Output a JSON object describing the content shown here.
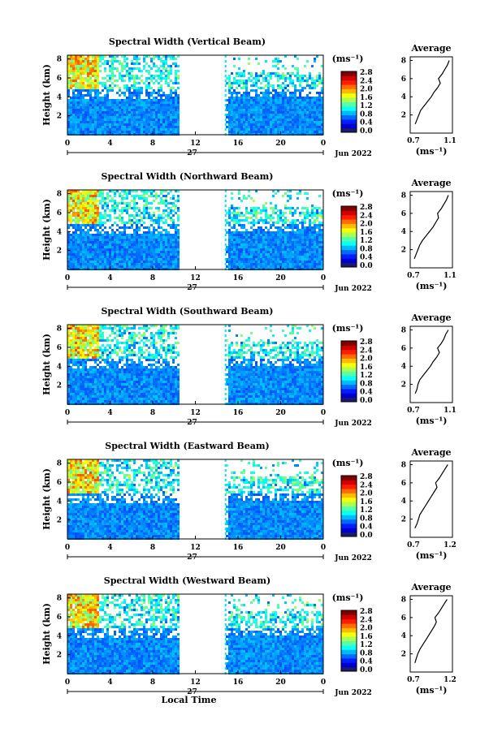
{
  "chart_data": [
    {
      "type": "heatmap",
      "title": "Spectral Width (Vertical Beam)",
      "ylabel": "Height (km)",
      "yticks": [
        "2",
        "4",
        "6",
        "8"
      ],
      "xticks": [
        "0",
        "4",
        "8",
        "12",
        "16",
        "20",
        "0"
      ],
      "day_label": "27",
      "month_label": "Jun 2022",
      "cb_unit": "(ms⁻¹)",
      "cb_ticks": [
        "0.0",
        "0.4",
        "0.8",
        "1.2",
        "1.6",
        "2.0",
        "2.4",
        "2.8"
      ],
      "avg_title": "Average",
      "avg_xticks": [
        "0.7",
        "1.1"
      ],
      "avg_xlabel": "(ms⁻¹)",
      "avg_yticks": [
        "2",
        "4",
        "6",
        "8"
      ],
      "avg_profile": {
        "height_km": [
          1.0,
          1.5,
          2.0,
          2.5,
          3.0,
          3.5,
          4.0,
          4.5,
          5.0,
          5.5,
          6.0,
          6.5,
          7.0,
          7.5,
          8.0
        ],
        "width_ms": [
          0.72,
          0.74,
          0.76,
          0.78,
          0.82,
          0.86,
          0.9,
          0.93,
          0.97,
          1.0,
          0.98,
          1.02,
          1.05,
          1.08,
          1.1
        ]
      }
    },
    {
      "type": "heatmap",
      "title": "Spectral Width (Northward Beam)",
      "ylabel": "Height (km)",
      "yticks": [
        "2",
        "4",
        "6",
        "8"
      ],
      "xticks": [
        "0",
        "4",
        "8",
        "12",
        "16",
        "20",
        "0"
      ],
      "day_label": "27",
      "month_label": "Jun 2022",
      "cb_unit": "(ms⁻¹)",
      "cb_ticks": [
        "0.0",
        "0.4",
        "0.8",
        "1.2",
        "1.6",
        "2.0",
        "2.4",
        "2.8"
      ],
      "avg_title": "Average",
      "avg_xticks": [
        "0.7",
        "1.1"
      ],
      "avg_xlabel": "(ms⁻¹)",
      "avg_yticks": [
        "2",
        "4",
        "6",
        "8"
      ],
      "avg_profile": {
        "height_km": [
          1.0,
          1.5,
          2.0,
          2.5,
          3.0,
          3.5,
          4.0,
          4.5,
          5.0,
          5.5,
          6.0,
          6.5,
          7.0,
          7.5,
          8.0
        ],
        "width_ms": [
          0.71,
          0.73,
          0.75,
          0.77,
          0.8,
          0.84,
          0.88,
          0.92,
          0.95,
          0.98,
          0.97,
          1.01,
          1.04,
          1.07,
          1.09
        ]
      }
    },
    {
      "type": "heatmap",
      "title": "Spectral Width (Southward Beam)",
      "ylabel": "Height (km)",
      "yticks": [
        "2",
        "4",
        "6",
        "8"
      ],
      "xticks": [
        "0",
        "4",
        "8",
        "12",
        "16",
        "20",
        "0"
      ],
      "day_label": "27",
      "month_label": "Jun 2022",
      "cb_unit": "(ms⁻¹)",
      "cb_ticks": [
        "0.0",
        "0.4",
        "0.8",
        "1.2",
        "1.6",
        "2.0",
        "2.4",
        "2.8"
      ],
      "avg_title": "Average",
      "avg_xticks": [
        "0.7",
        "1.1"
      ],
      "avg_xlabel": "(ms⁻¹)",
      "avg_yticks": [
        "2",
        "4",
        "6",
        "8"
      ],
      "avg_profile": {
        "height_km": [
          1.0,
          1.5,
          2.0,
          2.5,
          3.0,
          3.5,
          4.0,
          4.5,
          5.0,
          5.5,
          6.0,
          6.5,
          7.0,
          7.5,
          8.0
        ],
        "width_ms": [
          0.72,
          0.74,
          0.75,
          0.77,
          0.81,
          0.85,
          0.89,
          0.92,
          0.96,
          0.99,
          0.97,
          1.01,
          1.04,
          1.06,
          1.09
        ]
      }
    },
    {
      "type": "heatmap",
      "title": "Spectral Width (Eastward Beam)",
      "ylabel": "Height (km)",
      "yticks": [
        "2",
        "4",
        "6",
        "8"
      ],
      "xticks": [
        "0",
        "4",
        "8",
        "12",
        "16",
        "20",
        "0"
      ],
      "day_label": "27",
      "month_label": "Jun 2022",
      "cb_unit": "(ms⁻¹)",
      "cb_ticks": [
        "0.0",
        "0.4",
        "0.8",
        "1.2",
        "1.6",
        "2.0",
        "2.4",
        "2.8"
      ],
      "avg_title": "Average",
      "avg_xticks": [
        "0.7",
        "1.2"
      ],
      "avg_xlabel": "(ms⁻¹)",
      "avg_yticks": [
        "2",
        "4",
        "6",
        "8"
      ],
      "avg_profile": {
        "height_km": [
          1.0,
          1.5,
          2.0,
          2.5,
          3.0,
          3.5,
          4.0,
          4.5,
          5.0,
          5.5,
          6.0,
          6.5,
          7.0,
          7.5,
          8.0
        ],
        "width_ms": [
          0.72,
          0.75,
          0.77,
          0.79,
          0.83,
          0.87,
          0.91,
          0.95,
          0.99,
          1.03,
          1.01,
          1.06,
          1.1,
          1.14,
          1.18
        ]
      }
    },
    {
      "type": "heatmap",
      "title": "Spectral Width (Westward Beam)",
      "ylabel": "Height (km)",
      "yticks": [
        "2",
        "4",
        "6",
        "8"
      ],
      "xticks": [
        "0",
        "4",
        "8",
        "12",
        "16",
        "20",
        "0"
      ],
      "day_label": "27",
      "month_label": "Jun 2022",
      "xlabel": "Local Time",
      "cb_unit": "(ms⁻¹)",
      "cb_ticks": [
        "0.0",
        "0.4",
        "0.8",
        "1.2",
        "1.6",
        "2.0",
        "2.4",
        "2.8"
      ],
      "avg_title": "Average",
      "avg_xticks": [
        "0.7",
        "1.2"
      ],
      "avg_xlabel": "(ms⁻¹)",
      "avg_yticks": [
        "2",
        "4",
        "6",
        "8"
      ],
      "avg_profile": {
        "height_km": [
          1.0,
          1.5,
          2.0,
          2.5,
          3.0,
          3.5,
          4.0,
          4.5,
          5.0,
          5.5,
          6.0,
          6.5,
          7.0,
          7.5,
          8.0
        ],
        "width_ms": [
          0.72,
          0.74,
          0.76,
          0.79,
          0.83,
          0.87,
          0.91,
          0.95,
          0.99,
          1.02,
          1.0,
          1.05,
          1.09,
          1.13,
          1.17
        ]
      }
    }
  ]
}
